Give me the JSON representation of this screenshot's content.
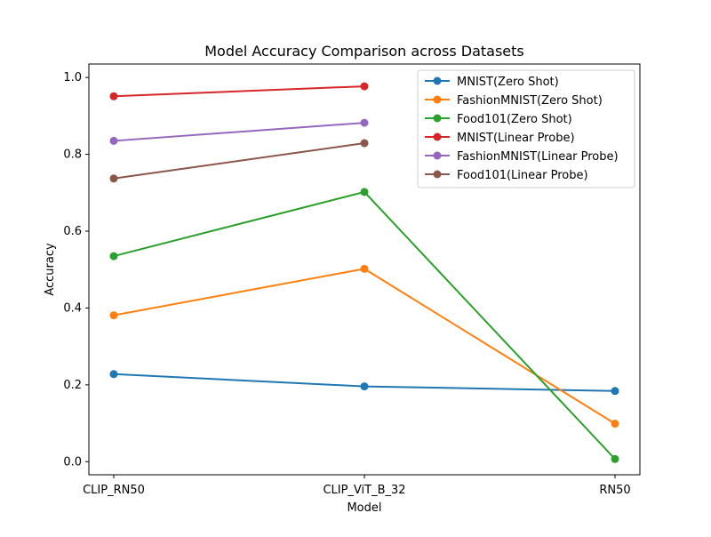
{
  "chart_data": {
    "type": "line",
    "title": "Model Accuracy Comparison across Datasets",
    "xlabel": "Model",
    "ylabel": "Accuracy",
    "categories": [
      "CLIP_RN50",
      "CLIP_ViT_B_32",
      "RN50"
    ],
    "ylim": [
      -0.034,
      1.035
    ],
    "yticks": [
      0.0,
      0.2,
      0.4,
      0.6,
      0.8,
      1.0
    ],
    "ytick_labels": [
      "0.0",
      "0.2",
      "0.4",
      "0.6",
      "0.8",
      "1.0"
    ],
    "grid": false,
    "legend_position": "top-right",
    "series": [
      {
        "name": "MNIST(Zero Shot)",
        "color": "#1f77b4",
        "values": [
          0.228,
          0.196,
          0.184
        ]
      },
      {
        "name": "FashionMNIST(Zero Shot)",
        "color": "#ff7f0e",
        "values": [
          0.381,
          0.502,
          0.099
        ]
      },
      {
        "name": "Food101(Zero Shot)",
        "color": "#2ca02c",
        "values": [
          0.535,
          0.702,
          0.007
        ]
      },
      {
        "name": "MNIST(Linear Probe)",
        "color": "#d62728",
        "values": [
          0.951,
          0.977,
          null
        ]
      },
      {
        "name": "FashionMNIST(Linear Probe)",
        "color": "#9467bd",
        "values": [
          0.835,
          0.882,
          null
        ]
      },
      {
        "name": "Food101(Linear Probe)",
        "color": "#8c564b",
        "values": [
          0.737,
          0.829,
          null
        ]
      }
    ]
  }
}
